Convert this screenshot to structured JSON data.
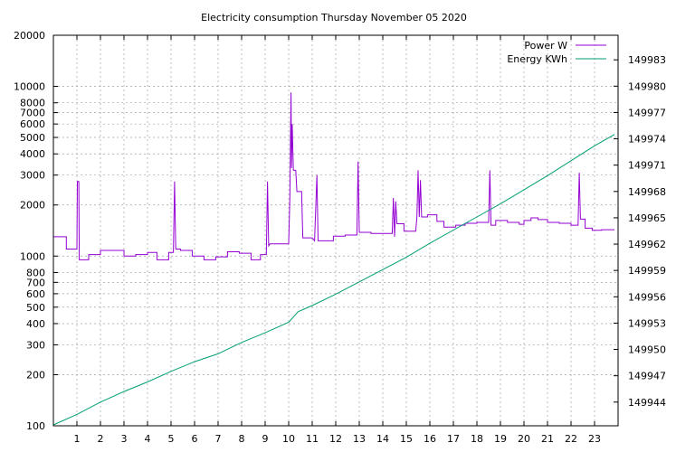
{
  "chart_data": {
    "type": "line",
    "title": "Electricity consumption Thursday November 05 2020",
    "x_ticks": [
      1,
      2,
      3,
      4,
      5,
      6,
      7,
      8,
      9,
      10,
      11,
      12,
      13,
      14,
      15,
      16,
      17,
      18,
      19,
      20,
      21,
      22,
      23
    ],
    "xlim": [
      0,
      24
    ],
    "y_left": {
      "scale": "log",
      "ylim": [
        100,
        20000
      ],
      "ticks": [
        100,
        200,
        300,
        400,
        500,
        600,
        700,
        800,
        1000,
        2000,
        3000,
        4000,
        5000,
        6000,
        7000,
        8000,
        10000,
        20000
      ]
    },
    "y_right": {
      "ylim": [
        149941.3,
        149985.8
      ],
      "ticks": [
        149944,
        149947,
        149950,
        149953,
        149956,
        149959,
        149962,
        149965,
        149968,
        149971,
        149974,
        149977,
        149980,
        149983
      ]
    },
    "grid": true,
    "legend_position": "top-right",
    "series": [
      {
        "name": "Power W",
        "axis": "left",
        "color": "#9400d3",
        "points": [
          [
            0,
            1300
          ],
          [
            0.55,
            1300
          ],
          [
            0.55,
            1100
          ],
          [
            1.0,
            1100
          ],
          [
            1.02,
            2750
          ],
          [
            1.08,
            2750
          ],
          [
            1.1,
            950
          ],
          [
            1.5,
            950
          ],
          [
            1.5,
            1020
          ],
          [
            2.0,
            1020
          ],
          [
            2.0,
            1080
          ],
          [
            3.0,
            1080
          ],
          [
            3.0,
            1000
          ],
          [
            3.5,
            1000
          ],
          [
            3.5,
            1020
          ],
          [
            4.0,
            1020
          ],
          [
            4.0,
            1050
          ],
          [
            4.4,
            1050
          ],
          [
            4.4,
            950
          ],
          [
            4.9,
            950
          ],
          [
            4.9,
            1050
          ],
          [
            5.1,
            1050
          ],
          [
            5.15,
            2750
          ],
          [
            5.2,
            1100
          ],
          [
            5.4,
            1100
          ],
          [
            5.4,
            1080
          ],
          [
            5.9,
            1080
          ],
          [
            5.9,
            1000
          ],
          [
            6.4,
            1000
          ],
          [
            6.4,
            950
          ],
          [
            6.9,
            950
          ],
          [
            6.9,
            990
          ],
          [
            7.4,
            990
          ],
          [
            7.4,
            1060
          ],
          [
            7.9,
            1060
          ],
          [
            7.9,
            1040
          ],
          [
            8.4,
            1040
          ],
          [
            8.4,
            950
          ],
          [
            8.8,
            950
          ],
          [
            8.8,
            1020
          ],
          [
            9.05,
            1020
          ],
          [
            9.1,
            2750
          ],
          [
            9.15,
            1150
          ],
          [
            9.2,
            1180
          ],
          [
            10.0,
            1180
          ],
          [
            10.05,
            2200
          ],
          [
            10.1,
            9200
          ],
          [
            10.12,
            3300
          ],
          [
            10.15,
            6000
          ],
          [
            10.2,
            3200
          ],
          [
            10.3,
            3200
          ],
          [
            10.35,
            2400
          ],
          [
            10.55,
            2400
          ],
          [
            10.6,
            1280
          ],
          [
            11.0,
            1280
          ],
          [
            11.1,
            1230
          ],
          [
            11.2,
            3000
          ],
          [
            11.25,
            1230
          ],
          [
            11.9,
            1230
          ],
          [
            11.9,
            1310
          ],
          [
            12.4,
            1310
          ],
          [
            12.4,
            1330
          ],
          [
            12.9,
            1330
          ],
          [
            12.95,
            3600
          ],
          [
            13.0,
            1380
          ],
          [
            13.5,
            1380
          ],
          [
            13.5,
            1360
          ],
          [
            14.4,
            1360
          ],
          [
            14.45,
            2200
          ],
          [
            14.5,
            1300
          ],
          [
            14.55,
            2100
          ],
          [
            14.6,
            1550
          ],
          [
            14.9,
            1550
          ],
          [
            14.9,
            1400
          ],
          [
            15.4,
            1400
          ],
          [
            15.45,
            1700
          ],
          [
            15.5,
            3200
          ],
          [
            15.55,
            1700
          ],
          [
            15.6,
            2800
          ],
          [
            15.65,
            1700
          ],
          [
            15.9,
            1700
          ],
          [
            15.9,
            1750
          ],
          [
            16.3,
            1750
          ],
          [
            16.3,
            1600
          ],
          [
            16.6,
            1600
          ],
          [
            16.6,
            1480
          ],
          [
            17.1,
            1480
          ],
          [
            17.1,
            1520
          ],
          [
            17.5,
            1520
          ],
          [
            17.5,
            1560
          ],
          [
            18.0,
            1560
          ],
          [
            18.0,
            1580
          ],
          [
            18.5,
            1580
          ],
          [
            18.55,
            3200
          ],
          [
            18.6,
            1520
          ],
          [
            18.8,
            1520
          ],
          [
            18.8,
            1620
          ],
          [
            19.3,
            1620
          ],
          [
            19.3,
            1580
          ],
          [
            19.8,
            1580
          ],
          [
            19.8,
            1540
          ],
          [
            20.0,
            1540
          ],
          [
            20.0,
            1620
          ],
          [
            20.3,
            1620
          ],
          [
            20.3,
            1680
          ],
          [
            20.6,
            1680
          ],
          [
            20.6,
            1640
          ],
          [
            21.0,
            1640
          ],
          [
            21.0,
            1580
          ],
          [
            21.5,
            1580
          ],
          [
            21.5,
            1560
          ],
          [
            22.0,
            1560
          ],
          [
            22.0,
            1520
          ],
          [
            22.3,
            1520
          ],
          [
            22.35,
            3100
          ],
          [
            22.4,
            1650
          ],
          [
            22.6,
            1650
          ],
          [
            22.6,
            1460
          ],
          [
            22.9,
            1460
          ],
          [
            22.9,
            1420
          ],
          [
            23.3,
            1420
          ],
          [
            23.3,
            1430
          ],
          [
            23.85,
            1430
          ]
        ]
      },
      {
        "name": "Energy KWh",
        "axis": "right",
        "color": "#009e73",
        "points": [
          [
            0,
            149941.4
          ],
          [
            1,
            149942.6
          ],
          [
            2,
            149944.0
          ],
          [
            3,
            149945.2
          ],
          [
            4,
            149946.3
          ],
          [
            5,
            149947.5
          ],
          [
            6,
            149948.6
          ],
          [
            7,
            149949.5
          ],
          [
            8,
            149950.8
          ],
          [
            9,
            149951.9
          ],
          [
            10,
            149953.1
          ],
          [
            10.4,
            149954.3
          ],
          [
            11,
            149955.0
          ],
          [
            12,
            149956.3
          ],
          [
            13,
            149957.7
          ],
          [
            14,
            149959.1
          ],
          [
            15,
            149960.5
          ],
          [
            16,
            149962.1
          ],
          [
            17,
            149963.6
          ],
          [
            18,
            149965.1
          ],
          [
            19,
            149966.6
          ],
          [
            20,
            149968.2
          ],
          [
            21,
            149969.8
          ],
          [
            22,
            149971.5
          ],
          [
            23,
            149973.2
          ],
          [
            23.85,
            149974.5
          ]
        ]
      }
    ]
  }
}
